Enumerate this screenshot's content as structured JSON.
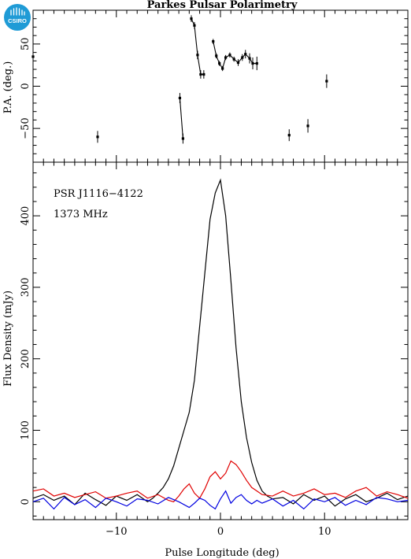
{
  "logo": {
    "text": "CSIRO",
    "color": "#1f9bd6"
  },
  "chart_data": [
    {
      "type": "scatter",
      "panel": "position-angle",
      "title": "Parkes Pulsar Polarimetry",
      "xlabel": "",
      "ylabel": "P.A. (deg.)",
      "xlim": [
        -18,
        18
      ],
      "ylim": [
        -90,
        90
      ],
      "yticks": [
        -50,
        0,
        50
      ],
      "yticklabels": [
        "−50",
        "0",
        "50"
      ],
      "points": [
        {
          "x": -18.0,
          "y": 35,
          "err": 8
        },
        {
          "x": -11.8,
          "y": -60,
          "err": 7
        },
        {
          "x": -3.9,
          "y": -14,
          "err": 6
        },
        {
          "x": -3.6,
          "y": -62,
          "err": 6
        },
        {
          "x": -2.8,
          "y": 80,
          "err": 4
        },
        {
          "x": -2.5,
          "y": 72,
          "err": 4
        },
        {
          "x": -2.2,
          "y": 37,
          "err": 5
        },
        {
          "x": -1.9,
          "y": 14,
          "err": 5
        },
        {
          "x": -1.6,
          "y": 14,
          "err": 5
        },
        {
          "x": -0.7,
          "y": 53,
          "err": 3
        },
        {
          "x": -0.4,
          "y": 36,
          "err": 3
        },
        {
          "x": -0.1,
          "y": 27,
          "err": 3
        },
        {
          "x": 0.2,
          "y": 21,
          "err": 3
        },
        {
          "x": 0.5,
          "y": 34,
          "err": 3
        },
        {
          "x": 0.9,
          "y": 37,
          "err": 3
        },
        {
          "x": 1.3,
          "y": 32,
          "err": 3
        },
        {
          "x": 1.7,
          "y": 28,
          "err": 4
        },
        {
          "x": 2.1,
          "y": 34,
          "err": 4
        },
        {
          "x": 2.4,
          "y": 38,
          "err": 5
        },
        {
          "x": 2.8,
          "y": 33,
          "err": 6
        },
        {
          "x": 3.1,
          "y": 27,
          "err": 7
        },
        {
          "x": 3.5,
          "y": 27,
          "err": 8
        },
        {
          "x": 6.6,
          "y": -58,
          "err": 7
        },
        {
          "x": 8.4,
          "y": -47,
          "err": 8
        },
        {
          "x": 10.2,
          "y": 6,
          "err": 8
        }
      ],
      "connected_segments": [
        [
          2,
          3
        ],
        [
          4,
          5,
          6,
          7,
          8
        ],
        [
          9,
          10,
          11,
          12,
          13,
          14,
          15,
          16,
          17,
          18,
          19,
          20,
          21
        ]
      ]
    },
    {
      "type": "line",
      "panel": "profile",
      "xlabel": "Pulse Longitude (deg)",
      "ylabel": "Flux Density (mJy)",
      "xlim": [
        -18,
        18
      ],
      "ylim": [
        -25,
        475
      ],
      "xticks": [
        -10,
        0,
        10
      ],
      "xticklabels": [
        "−10",
        "0",
        "10"
      ],
      "yticks": [
        0,
        100,
        200,
        300,
        400
      ],
      "yticklabels": [
        "0",
        "100",
        "200",
        "300",
        "400"
      ],
      "annotations": [
        "PSR J1116−4122",
        "1373 MHz"
      ],
      "series": [
        {
          "color": "#000000",
          "x": [
            -18.0,
            -17.0,
            -16.0,
            -15.0,
            -14.0,
            -13.0,
            -12.0,
            -11.0,
            -10.0,
            -9.0,
            -8.0,
            -7.0,
            -6.5,
            -6.0,
            -5.5,
            -5.0,
            -4.5,
            -4.0,
            -3.5,
            -3.0,
            -2.5,
            -2.0,
            -1.5,
            -1.0,
            -0.5,
            0.0,
            0.5,
            1.0,
            1.5,
            2.0,
            2.5,
            3.0,
            3.5,
            4.0,
            4.5,
            5.0,
            6.0,
            7.0,
            8.0,
            9.0,
            10.0,
            11.0,
            12.0,
            13.0,
            14.0,
            15.0,
            16.0,
            17.0,
            18.0
          ],
          "y": [
            5,
            10,
            2,
            8,
            -4,
            12,
            3,
            -5,
            8,
            2,
            10,
            0,
            5,
            12,
            20,
            32,
            50,
            75,
            100,
            125,
            170,
            245,
            320,
            395,
            432,
            450,
            400,
            310,
            215,
            140,
            90,
            55,
            30,
            15,
            8,
            4,
            6,
            -3,
            10,
            2,
            8,
            -6,
            4,
            10,
            0,
            5,
            12,
            3,
            8
          ]
        },
        {
          "color": "#e00000",
          "x": [
            -18.0,
            -17.0,
            -16.0,
            -15.0,
            -14.0,
            -13.0,
            -12.0,
            -11.0,
            -10.0,
            -9.0,
            -8.0,
            -7.0,
            -6.0,
            -5.0,
            -4.5,
            -4.0,
            -3.5,
            -3.0,
            -2.5,
            -2.0,
            -1.5,
            -1.0,
            -0.5,
            0.0,
            0.5,
            1.0,
            1.5,
            2.0,
            2.5,
            3.0,
            3.5,
            4.0,
            5.0,
            6.0,
            7.0,
            8.0,
            9.0,
            10.0,
            11.0,
            12.0,
            13.0,
            14.0,
            15.0,
            16.0,
            17.0,
            18.0
          ],
          "y": [
            15,
            18,
            8,
            12,
            6,
            10,
            14,
            5,
            8,
            12,
            15,
            5,
            10,
            2,
            0,
            8,
            18,
            25,
            12,
            5,
            18,
            35,
            42,
            32,
            40,
            57,
            52,
            42,
            30,
            20,
            15,
            10,
            8,
            15,
            8,
            12,
            18,
            10,
            12,
            6,
            15,
            20,
            8,
            14,
            10,
            5
          ]
        },
        {
          "color": "#0000e0",
          "x": [
            -18.0,
            -17.0,
            -16.0,
            -15.0,
            -14.0,
            -13.0,
            -12.0,
            -11.0,
            -10.0,
            -9.0,
            -8.0,
            -7.0,
            -6.0,
            -5.0,
            -4.0,
            -3.0,
            -2.5,
            -2.0,
            -1.5,
            -1.0,
            -0.5,
            0.0,
            0.5,
            1.0,
            1.5,
            2.0,
            2.5,
            3.0,
            3.5,
            4.0,
            5.0,
            6.0,
            7.0,
            8.0,
            9.0,
            10.0,
            11.0,
            12.0,
            13.0,
            14.0,
            15.0,
            16.0,
            17.0,
            18.0
          ],
          "y": [
            0,
            5,
            -10,
            6,
            -4,
            3,
            -8,
            5,
            0,
            -6,
            4,
            2,
            -3,
            6,
            0,
            -8,
            -2,
            5,
            2,
            -5,
            -10,
            4,
            15,
            -2,
            6,
            10,
            2,
            -3,
            2,
            -2,
            4,
            -6,
            2,
            -10,
            4,
            0,
            6,
            -5,
            2,
            -4,
            6,
            4,
            0,
            2
          ]
        }
      ]
    }
  ]
}
